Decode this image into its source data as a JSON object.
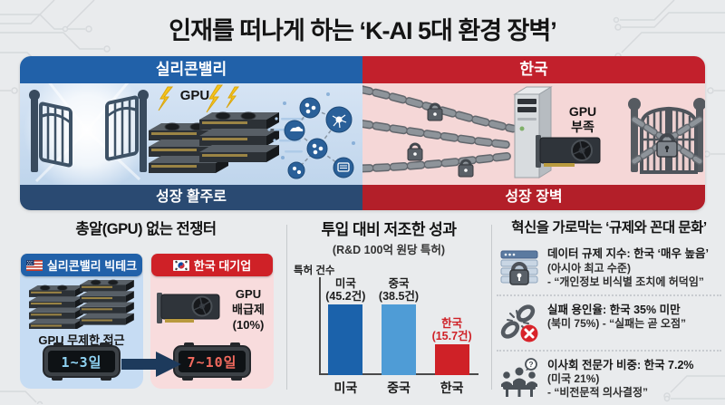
{
  "page": {
    "title": "인재를 떠나게 하는 ‘K-AI 5대 환경 장벽’"
  },
  "comparison": {
    "left": {
      "header": "실리콘밸리",
      "gpu_label": "GPU",
      "footer": "성장 활주로"
    },
    "right": {
      "header": "한국",
      "gpu_label_line1": "GPU",
      "gpu_label_line2": "부족",
      "footer": "성장 장벽"
    }
  },
  "battlefield": {
    "title": "총알(GPU) 없는 전쟁터",
    "silicon_valley": {
      "header": "실리콘밸리 빅테크",
      "caption": "GPU 무제한 접근",
      "clock_value": "1~3일"
    },
    "korea": {
      "header": "한국 대기업",
      "caption_line1": "GPU",
      "caption_line2": "배급제",
      "caption_line3": "(10%)",
      "clock_value": "7~10일"
    }
  },
  "chart_data": {
    "type": "bar",
    "title": "투입 대비 저조한 성과",
    "subtitle": "(R&D 100억 원당 특허)",
    "ylabel": "특허 건수",
    "categories": [
      "미국",
      "중국",
      "한국"
    ],
    "values": [
      45.2,
      38.5,
      15.7
    ],
    "value_labels": [
      "(45.2건)",
      "(38.5건)",
      "(15.7건)"
    ],
    "bar_colors": [
      "#1b62ab",
      "#4f9cd6",
      "#cf2127"
    ],
    "label_colors": [
      "#1f1f1f",
      "#1f1f1f",
      "#cf2127"
    ],
    "ylim": [
      0,
      50
    ],
    "grid": false,
    "legend": "none"
  },
  "regulation": {
    "title": "혁신을 가로막는 ‘규제와 꼰대 문화’",
    "items": [
      {
        "icon": "data-lock-icon",
        "lines": [
          "데이터 규제 지수: 한국 ‘매우 높음’",
          "(아시아 최고 수준)",
          "- “개인정보 비식별 조치에 허덕임”"
        ]
      },
      {
        "icon": "broken-chain-icon",
        "lines": [
          "실패 용인율: 한국 35% 미만",
          "(북미 75%) - “실패는 곧 오점”"
        ]
      },
      {
        "icon": "board-meeting-icon",
        "lines": [
          "이사회 전문가 비중: 한국 7.2%",
          "(미국 21%)",
          "- “비전문적 의사결정”"
        ],
        "bubble": "?"
      }
    ]
  },
  "colors": {
    "blue_header": "#2161a9",
    "red_header": "#c2202c",
    "navy_footer": "#2a4a72",
    "dark_red_footer": "#b31f29",
    "bar_us": "#1b62ab",
    "bar_cn": "#4f9cd6",
    "bar_kr": "#cf2127",
    "clock_blue_digits": "#8ed2f2",
    "clock_red_digits": "#f26a5e"
  }
}
